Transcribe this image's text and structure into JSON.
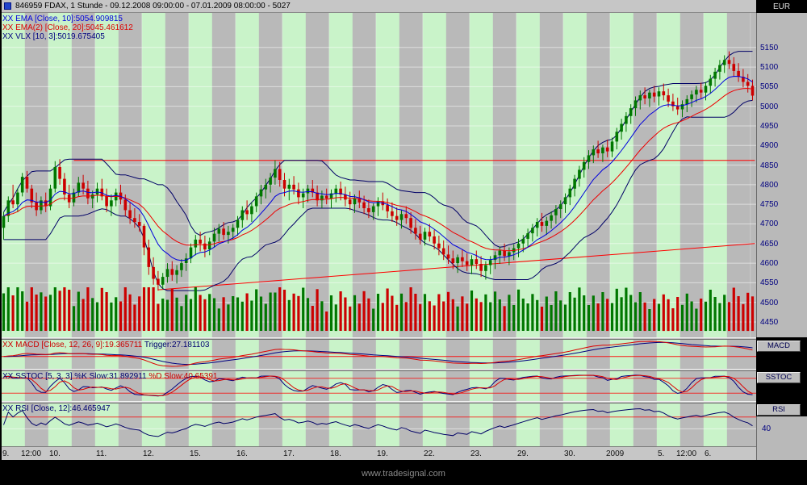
{
  "window": {
    "title": "846959 FDAX, 1 Stunde - 09.12.2008 09:00:00 - 07.01.2009 08:00:00 - 5027",
    "currency": "EUR"
  },
  "watermark": "www.tradesignal.com",
  "legend": {
    "ema1": "XX EMA [Close, 10]:5054.909815",
    "ema2": "XX EMA(2) [Close, 20]:5045.461612",
    "vlx": "XX VLX [10, 3]:5019.675405"
  },
  "panels": {
    "macd": {
      "label": "MACD",
      "header_main": "XX MACD [Close, 12, 26, 9]:19.365711",
      "header_trigger": "Trigger:27.181103"
    },
    "sstoc": {
      "label": "SSTOC",
      "header_main": "XX SSTOC [5, 3, 3] %K Slow:31.892911",
      "header_d": "%D Slow:40.65391"
    },
    "rsi": {
      "label": "RSI",
      "header_main": "XX RSI [Close, 12]:46.465947",
      "axis_label": "40"
    }
  },
  "price_axis": {
    "ticks": [
      "5150",
      "5100",
      "5050",
      "5000",
      "4950",
      "4900",
      "4850",
      "4800",
      "4750",
      "4700",
      "4650",
      "4600",
      "4550",
      "4500",
      "4450"
    ]
  },
  "time_axis": [
    {
      "label": "9.",
      "bar": 0
    },
    {
      "label": "12:00",
      "bar": 4
    },
    {
      "label": "10.",
      "bar": 10
    },
    {
      "label": "11.",
      "bar": 20
    },
    {
      "label": "12.",
      "bar": 30
    },
    {
      "label": "15.",
      "bar": 40
    },
    {
      "label": "16.",
      "bar": 50
    },
    {
      "label": "17.",
      "bar": 60
    },
    {
      "label": "18.",
      "bar": 70
    },
    {
      "label": "19.",
      "bar": 80
    },
    {
      "label": "22.",
      "bar": 90
    },
    {
      "label": "23.",
      "bar": 100
    },
    {
      "label": "29.",
      "bar": 110
    },
    {
      "label": "30.",
      "bar": 120
    },
    {
      "label": "2009",
      "bar": 129
    },
    {
      "label": "5.",
      "bar": 140
    },
    {
      "label": "12:00",
      "bar": 144
    },
    {
      "label": "6.",
      "bar": 150
    }
  ],
  "colors": {
    "up": "#007700",
    "down": "#cc0000",
    "ema10": "#0000dd",
    "ema20": "#ee0000",
    "vlx": "#000066",
    "macd": "#dd0000",
    "trigger": "#000080",
    "k": "#000080",
    "d": "#dd0000",
    "rsi": "#000066",
    "trend": "#ff0000",
    "stripe": "#c9f3c9",
    "panel_bg": "#b9b9b9",
    "grid": "#ffffff",
    "axis_text": "#000080"
  },
  "chart_data": {
    "type": "candlestick",
    "symbol": "FDAX",
    "interval": "1 Stunde",
    "period_shown": "09.12.2008 09:00:00 - 07.01.2009 08:00:00",
    "last_price": 5027,
    "ylim": [
      4430,
      5240
    ],
    "y_tick_step": 50,
    "bars_per_day": 10,
    "overlays": [
      {
        "name": "EMA",
        "period": 10,
        "value": 5054.909815
      },
      {
        "name": "EMA(2)",
        "period": 20,
        "value": 5045.461612
      },
      {
        "name": "VLX",
        "params": [
          10,
          3
        ],
        "value": 5019.675405
      }
    ],
    "indicators": [
      {
        "name": "MACD",
        "params": [
          12,
          26,
          9
        ],
        "value": 19.365711,
        "trigger": 27.181103
      },
      {
        "name": "SSTOC",
        "params": [
          5,
          3,
          3
        ],
        "k_slow": 31.892911,
        "d_slow": 40.65391
      },
      {
        "name": "RSI",
        "params": [
          12
        ],
        "value": 46.465947,
        "levels_shown": [
          40
        ]
      }
    ],
    "trendlines": [
      {
        "name": "resistance",
        "p1": [
          15,
          4862
        ],
        "p2": [
          160.5,
          4862
        ]
      },
      {
        "name": "rising-support",
        "p1": [
          33,
          4532
        ],
        "p2": [
          160.5,
          4650
        ]
      }
    ],
    "ohlc": [
      [
        4690,
        4730,
        4660,
        4720
      ],
      [
        4720,
        4770,
        4705,
        4760
      ],
      [
        4760,
        4800,
        4740,
        4750
      ],
      [
        4750,
        4790,
        4730,
        4780
      ],
      [
        4780,
        4830,
        4770,
        4820
      ],
      [
        4820,
        4835,
        4780,
        4790
      ],
      [
        4790,
        4800,
        4740,
        4755
      ],
      [
        4755,
        4780,
        4720,
        4735
      ],
      [
        4735,
        4770,
        4725,
        4760
      ],
      [
        4760,
        4780,
        4730,
        4745
      ],
      [
        4745,
        4800,
        4735,
        4790
      ],
      [
        4790,
        4860,
        4780,
        4845
      ],
      [
        4845,
        4865,
        4800,
        4815
      ],
      [
        4815,
        4830,
        4760,
        4775
      ],
      [
        4775,
        4800,
        4740,
        4755
      ],
      [
        4755,
        4790,
        4745,
        4780
      ],
      [
        4780,
        4820,
        4770,
        4805
      ],
      [
        4805,
        4825,
        4775,
        4790
      ],
      [
        4790,
        4810,
        4750,
        4765
      ],
      [
        4765,
        4785,
        4740,
        4775
      ],
      [
        4775,
        4805,
        4755,
        4790
      ],
      [
        4790,
        4815,
        4760,
        4770
      ],
      [
        4770,
        4790,
        4730,
        4745
      ],
      [
        4745,
        4775,
        4720,
        4760
      ],
      [
        4760,
        4790,
        4745,
        4780
      ],
      [
        4780,
        4800,
        4750,
        4762
      ],
      [
        4762,
        4775,
        4720,
        4735
      ],
      [
        4735,
        4755,
        4700,
        4715
      ],
      [
        4715,
        4740,
        4690,
        4705
      ],
      [
        4705,
        4725,
        4680,
        4695
      ],
      [
        4695,
        4700,
        4620,
        4640
      ],
      [
        4640,
        4660,
        4570,
        4590
      ],
      [
        4590,
        4615,
        4545,
        4560
      ],
      [
        4560,
        4580,
        4530,
        4545
      ],
      [
        4545,
        4575,
        4535,
        4565
      ],
      [
        4565,
        4600,
        4550,
        4585
      ],
      [
        4585,
        4605,
        4555,
        4570
      ],
      [
        4570,
        4595,
        4548,
        4582
      ],
      [
        4582,
        4610,
        4565,
        4600
      ],
      [
        4600,
        4625,
        4580,
        4612
      ],
      [
        4612,
        4650,
        4600,
        4640
      ],
      [
        4640,
        4672,
        4620,
        4660
      ],
      [
        4660,
        4680,
        4630,
        4650
      ],
      [
        4650,
        4670,
        4615,
        4635
      ],
      [
        4635,
        4665,
        4620,
        4655
      ],
      [
        4655,
        4690,
        4640,
        4675
      ],
      [
        4675,
        4700,
        4655,
        4688
      ],
      [
        4688,
        4705,
        4660,
        4672
      ],
      [
        4672,
        4695,
        4650,
        4680
      ],
      [
        4680,
        4700,
        4660,
        4690
      ],
      [
        4690,
        4720,
        4670,
        4710
      ],
      [
        4710,
        4745,
        4690,
        4735
      ],
      [
        4735,
        4760,
        4710,
        4725
      ],
      [
        4725,
        4755,
        4705,
        4745
      ],
      [
        4745,
        4780,
        4730,
        4770
      ],
      [
        4770,
        4800,
        4750,
        4788
      ],
      [
        4788,
        4815,
        4765,
        4800
      ],
      [
        4800,
        4830,
        4780,
        4818
      ],
      [
        4818,
        4862,
        4800,
        4840
      ],
      [
        4840,
        4858,
        4795,
        4812
      ],
      [
        4812,
        4830,
        4770,
        4790
      ],
      [
        4790,
        4815,
        4760,
        4800
      ],
      [
        4800,
        4822,
        4775,
        4788
      ],
      [
        4788,
        4805,
        4750,
        4768
      ],
      [
        4768,
        4790,
        4740,
        4778
      ],
      [
        4778,
        4800,
        4755,
        4790
      ],
      [
        4790,
        4812,
        4768,
        4780
      ],
      [
        4780,
        4798,
        4745,
        4760
      ],
      [
        4760,
        4785,
        4740,
        4772
      ],
      [
        4772,
        4790,
        4750,
        4765
      ],
      [
        4765,
        4788,
        4740,
        4778
      ],
      [
        4778,
        4800,
        4755,
        4790
      ],
      [
        4790,
        4808,
        4760,
        4775
      ],
      [
        4775,
        4795,
        4745,
        4762
      ],
      [
        4762,
        4782,
        4735,
        4750
      ],
      [
        4750,
        4775,
        4728,
        4765
      ],
      [
        4765,
        4785,
        4740,
        4755
      ],
      [
        4755,
        4772,
        4725,
        4740
      ],
      [
        4740,
        4762,
        4715,
        4730
      ],
      [
        4730,
        4752,
        4710,
        4745
      ],
      [
        4745,
        4768,
        4720,
        4758
      ],
      [
        4758,
        4780,
        4735,
        4748
      ],
      [
        4748,
        4765,
        4715,
        4732
      ],
      [
        4732,
        4755,
        4705,
        4720
      ],
      [
        4720,
        4742,
        4695,
        4710
      ],
      [
        4710,
        4735,
        4688,
        4725
      ],
      [
        4725,
        4745,
        4700,
        4715
      ],
      [
        4715,
        4730,
        4675,
        4690
      ],
      [
        4690,
        4712,
        4660,
        4675
      ],
      [
        4675,
        4695,
        4648,
        4660
      ],
      [
        4660,
        4690,
        4645,
        4680
      ],
      [
        4680,
        4700,
        4655,
        4668
      ],
      [
        4668,
        4685,
        4635,
        4650
      ],
      [
        4650,
        4670,
        4620,
        4638
      ],
      [
        4638,
        4658,
        4608,
        4622
      ],
      [
        4622,
        4645,
        4598,
        4612
      ],
      [
        4612,
        4632,
        4585,
        4600
      ],
      [
        4600,
        4622,
        4575,
        4615
      ],
      [
        4615,
        4635,
        4590,
        4605
      ],
      [
        4605,
        4625,
        4580,
        4595
      ],
      [
        4595,
        4620,
        4572,
        4610
      ],
      [
        4610,
        4632,
        4585,
        4598
      ],
      [
        4598,
        4618,
        4565,
        4580
      ],
      [
        4580,
        4605,
        4558,
        4595
      ],
      [
        4595,
        4618,
        4572,
        4608
      ],
      [
        4608,
        4630,
        4585,
        4620
      ],
      [
        4620,
        4642,
        4598,
        4632
      ],
      [
        4632,
        4650,
        4605,
        4618
      ],
      [
        4618,
        4640,
        4595,
        4628
      ],
      [
        4628,
        4648,
        4608,
        4638
      ],
      [
        4638,
        4662,
        4615,
        4650
      ],
      [
        4650,
        4672,
        4628,
        4662
      ],
      [
        4662,
        4688,
        4640,
        4676
      ],
      [
        4676,
        4700,
        4655,
        4690
      ],
      [
        4690,
        4715,
        4668,
        4705
      ],
      [
        4705,
        4728,
        4680,
        4695
      ],
      [
        4695,
        4718,
        4672,
        4708
      ],
      [
        4708,
        4732,
        4688,
        4722
      ],
      [
        4722,
        4748,
        4700,
        4738
      ],
      [
        4738,
        4760,
        4715,
        4750
      ],
      [
        4750,
        4778,
        4728,
        4768
      ],
      [
        4768,
        4800,
        4748,
        4790
      ],
      [
        4790,
        4825,
        4770,
        4815
      ],
      [
        4815,
        4848,
        4795,
        4838
      ],
      [
        4838,
        4870,
        4818,
        4858
      ],
      [
        4858,
        4888,
        4840,
        4875
      ],
      [
        4875,
        4900,
        4855,
        4890
      ],
      [
        4890,
        4912,
        4868,
        4880
      ],
      [
        4880,
        4902,
        4858,
        4895
      ],
      [
        4895,
        4915,
        4870,
        4885
      ],
      [
        4885,
        4920,
        4870,
        4910
      ],
      [
        4910,
        4945,
        4890,
        4935
      ],
      [
        4935,
        4968,
        4915,
        4955
      ],
      [
        4955,
        4985,
        4935,
        4975
      ],
      [
        4975,
        5005,
        4955,
        4995
      ],
      [
        4995,
        5025,
        4975,
        5015
      ],
      [
        5015,
        5040,
        4992,
        5028
      ],
      [
        5028,
        5048,
        5005,
        5020
      ],
      [
        5020,
        5042,
        4998,
        5035
      ],
      [
        5035,
        5052,
        5010,
        5025
      ],
      [
        5025,
        5048,
        5002,
        5038
      ],
      [
        5038,
        5058,
        5015,
        5028
      ],
      [
        5028,
        5045,
        4998,
        5012
      ],
      [
        5012,
        5032,
        4988,
        5000
      ],
      [
        5000,
        5022,
        4978,
        4992
      ],
      [
        4992,
        5015,
        4972,
        5005
      ],
      [
        5005,
        5028,
        4985,
        5018
      ],
      [
        5018,
        5040,
        4998,
        5030
      ],
      [
        5030,
        5052,
        5010,
        5042
      ],
      [
        5042,
        5060,
        5020,
        5035
      ],
      [
        5035,
        5062,
        5015,
        5052
      ],
      [
        5052,
        5080,
        5032,
        5070
      ],
      [
        5070,
        5098,
        5050,
        5088
      ],
      [
        5088,
        5118,
        5068,
        5105
      ],
      [
        5105,
        5130,
        5085,
        5118
      ],
      [
        5118,
        5140,
        5095,
        5108
      ],
      [
        5108,
        5125,
        5075,
        5090
      ],
      [
        5090,
        5110,
        5062,
        5075
      ],
      [
        5075,
        5095,
        5048,
        5062
      ],
      [
        5062,
        5082,
        5035,
        5052
      ],
      [
        5052,
        5068,
        5015,
        5027
      ]
    ]
  }
}
